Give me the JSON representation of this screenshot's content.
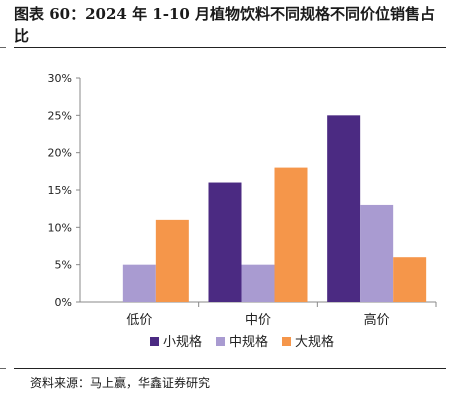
{
  "header": {
    "title": "图表 60：2024 年 1-10 月植物饮料不同规格不同价位销售占比"
  },
  "footer": {
    "source": "资料来源：马上赢，华鑫证券研究"
  },
  "colors": {
    "small": "#4b2a82",
    "medium": "#a99bd1",
    "large": "#f5964a"
  },
  "chart_data": {
    "type": "bar",
    "categories": [
      "低价",
      "中价",
      "高价"
    ],
    "series": [
      {
        "name": "小规格",
        "values": [
          0,
          16,
          25
        ]
      },
      {
        "name": "中规格",
        "values": [
          5,
          5,
          13
        ]
      },
      {
        "name": "大规格",
        "values": [
          11,
          18,
          6
        ]
      }
    ],
    "yticks": [
      "0%",
      "5%",
      "10%",
      "15%",
      "20%",
      "25%",
      "30%"
    ],
    "ylim": [
      0,
      30
    ],
    "grid": false,
    "legend": "bottom"
  }
}
